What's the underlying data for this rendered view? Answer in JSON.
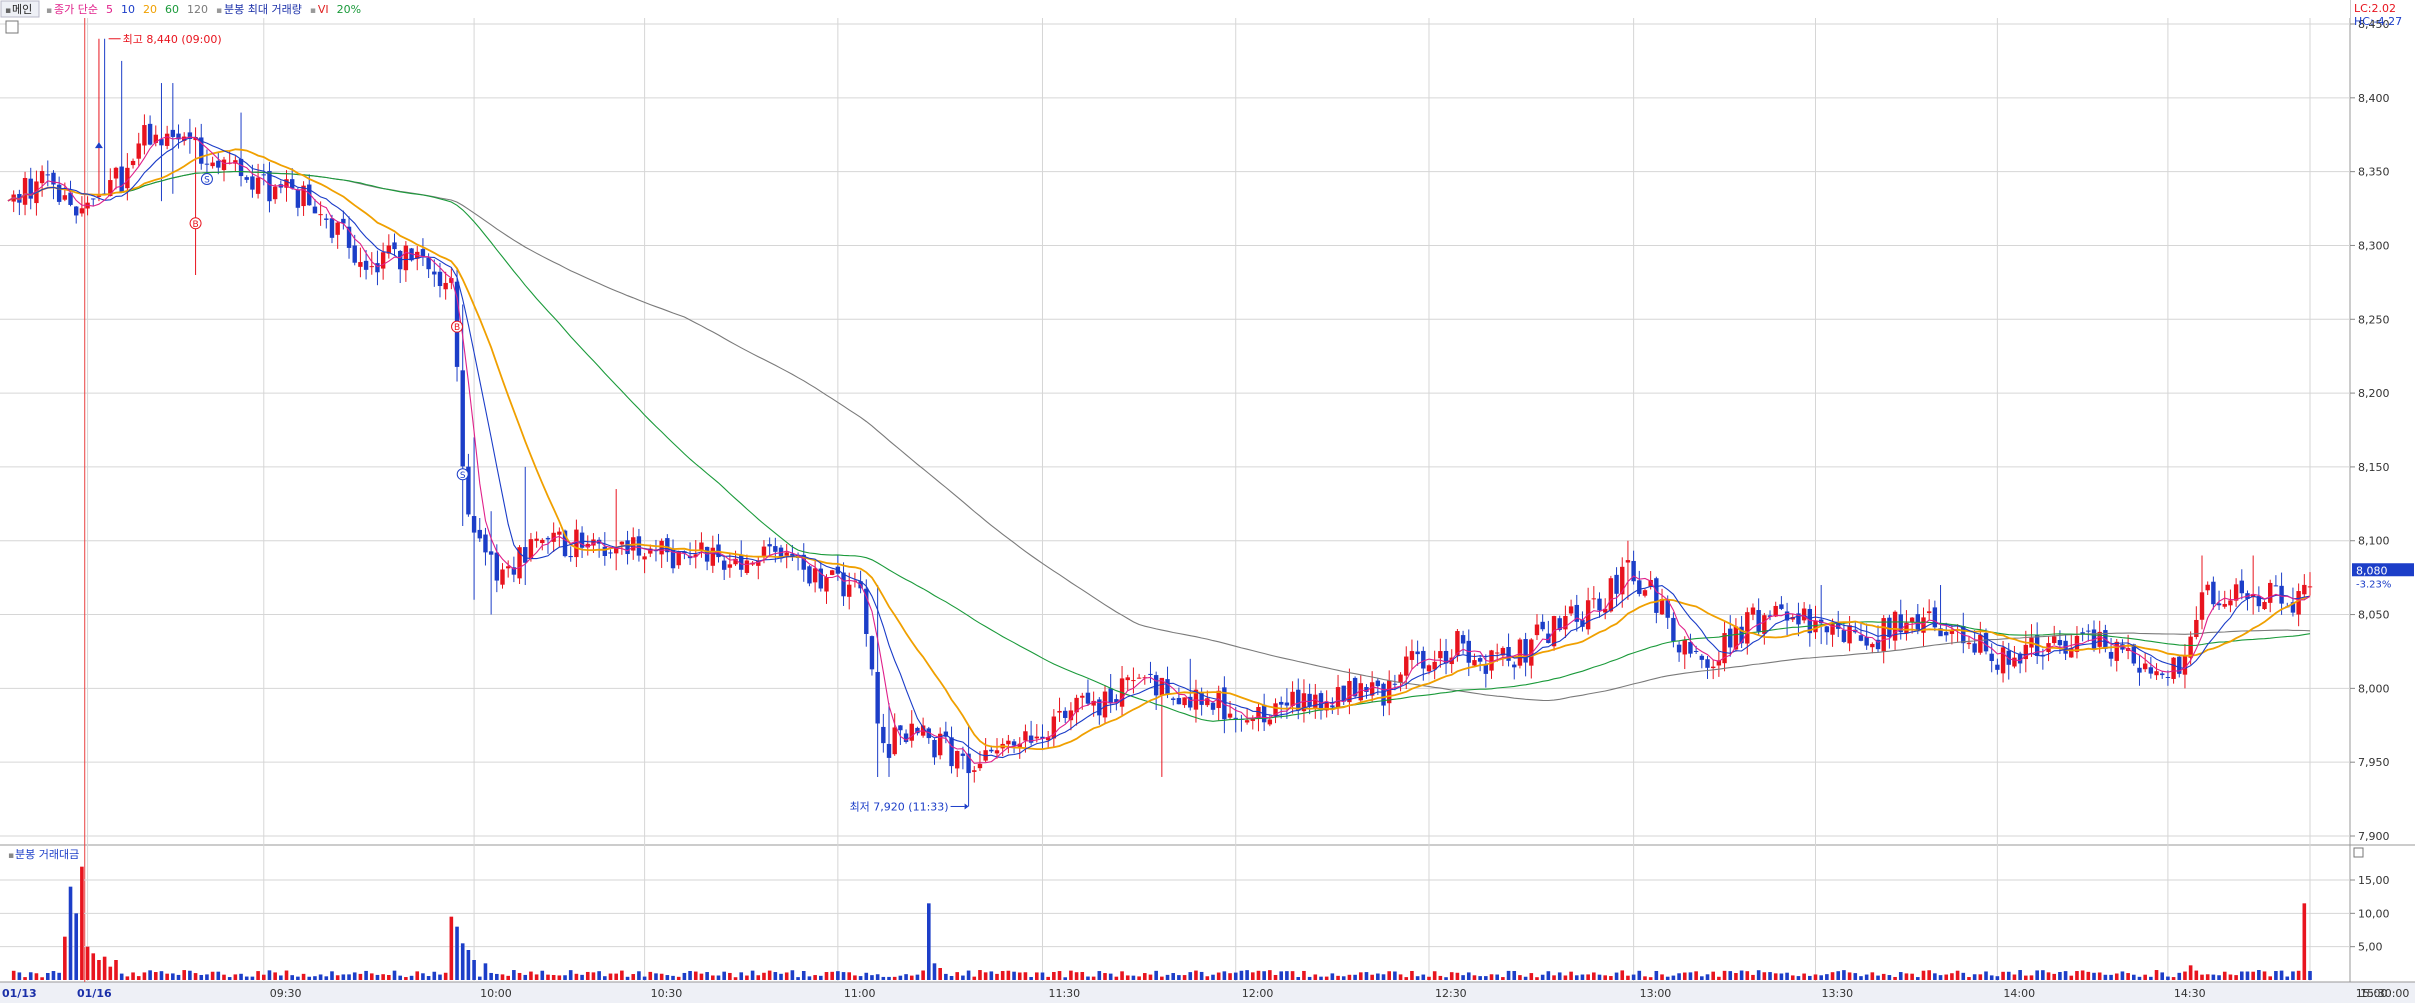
{
  "toolbar": {
    "tab_label": "메인",
    "legend": [
      {
        "text": "종가 단순",
        "color": "#e0208a"
      },
      {
        "text": "5",
        "color": "#e0208a"
      },
      {
        "text": "10",
        "color": "#1a3cc8"
      },
      {
        "text": "20",
        "color": "#f0a000"
      },
      {
        "text": "60",
        "color": "#1a9a3a"
      },
      {
        "text": "120",
        "color": "#7a7a7a"
      },
      {
        "text": "분봉 최대 거래량",
        "color": "#1a2fa8"
      },
      {
        "text": "VI",
        "color": "#e02020"
      },
      {
        "text": "20%",
        "color": "#1a9a3a"
      }
    ],
    "lc_text": "LC:2.02",
    "hc_text": "HC:-4.27"
  },
  "colors": {
    "up": "#e8141e",
    "down": "#1c3ec8",
    "ma5": "#e0208a",
    "ma10": "#1a3cc8",
    "ma20": "#f0a000",
    "ma60": "#1a9a3a",
    "ma120": "#7a7a7a",
    "grid": "#d6d6d6",
    "axis_text": "#333333",
    "current_price_bg": "#1c3ec8"
  },
  "chart_data": [
    {
      "type": "candlestick",
      "title": "",
      "ylim": [
        7900,
        8450
      ],
      "y_ticks": [
        7900,
        7950,
        8000,
        8050,
        8100,
        8150,
        8200,
        8250,
        8300,
        8350,
        8400,
        8450
      ],
      "y_tick_labels": [
        "7,900",
        "7,950",
        "8,000",
        "8,050",
        "8,100",
        "8,150",
        "8,200",
        "8,250",
        "8,300",
        "8,350",
        "8,400",
        "8,450"
      ],
      "x_ticks": [
        "01/13",
        "01/16",
        "09:30",
        "10:00",
        "10:30",
        "11:00",
        "11:30",
        "12:00",
        "12:30",
        "13:00",
        "13:30",
        "14:00",
        "14:30",
        "15:00",
        "15:30:00"
      ],
      "annotations": {
        "high_label": "최고 8,440 (09:00)",
        "low_label": "최저 7,920 (11:33)",
        "current_price": "8,080",
        "current_change": "-3.23%"
      },
      "grid": true,
      "anchors": [
        [
          0,
          8335
        ],
        [
          6,
          8340
        ],
        [
          12,
          8330
        ],
        [
          18,
          8340
        ],
        [
          20,
          8345
        ],
        [
          22,
          8360
        ],
        [
          24,
          8375
        ],
        [
          26,
          8365
        ],
        [
          30,
          8370
        ],
        [
          34,
          8360
        ],
        [
          38,
          8358
        ],
        [
          42,
          8345
        ],
        [
          46,
          8340
        ],
        [
          50,
          8335
        ],
        [
          54,
          8325
        ],
        [
          58,
          8310
        ],
        [
          62,
          8290
        ],
        [
          66,
          8290
        ],
        [
          70,
          8295
        ],
        [
          74,
          8280
        ],
        [
          78,
          8270
        ],
        [
          80,
          8150
        ],
        [
          82,
          8100
        ],
        [
          86,
          8080
        ],
        [
          90,
          8090
        ],
        [
          96,
          8100
        ],
        [
          104,
          8095
        ],
        [
          112,
          8095
        ],
        [
          120,
          8090
        ],
        [
          128,
          8085
        ],
        [
          136,
          8090
        ],
        [
          142,
          8075
        ],
        [
          146,
          8070
        ],
        [
          150,
          8060
        ],
        [
          154,
          7960
        ],
        [
          158,
          7970
        ],
        [
          162,
          7965
        ],
        [
          166,
          7955
        ],
        [
          172,
          7950
        ],
        [
          178,
          7960
        ],
        [
          184,
          7975
        ],
        [
          190,
          7990
        ],
        [
          198,
          8000
        ],
        [
          206,
          7995
        ],
        [
          214,
          7990
        ],
        [
          220,
          7985
        ],
        [
          228,
          7990
        ],
        [
          236,
          7995
        ],
        [
          242,
          7995
        ],
        [
          248,
          8020
        ],
        [
          256,
          8030
        ],
        [
          262,
          8015
        ],
        [
          268,
          8030
        ],
        [
          274,
          8045
        ],
        [
          280,
          8055
        ],
        [
          284,
          8080
        ],
        [
          288,
          8070
        ],
        [
          294,
          8030
        ],
        [
          298,
          8020
        ],
        [
          304,
          8035
        ],
        [
          310,
          8055
        ],
        [
          316,
          8050
        ],
        [
          322,
          8035
        ],
        [
          328,
          8030
        ],
        [
          334,
          8050
        ],
        [
          340,
          8045
        ],
        [
          346,
          8030
        ],
        [
          352,
          8020
        ],
        [
          358,
          8025
        ],
        [
          364,
          8035
        ],
        [
          370,
          8030
        ],
        [
          376,
          8015
        ],
        [
          382,
          8010
        ],
        [
          386,
          8060
        ],
        [
          392,
          8070
        ],
        [
          398,
          8065
        ],
        [
          402,
          8060
        ],
        [
          404,
          8070
        ]
      ],
      "wicks": [
        {
          "i": 16,
          "h": 8440,
          "l": 8330
        },
        {
          "i": 17,
          "h": 8440,
          "l": 8335
        },
        {
          "i": 20,
          "h": 8425,
          "l": 8345
        },
        {
          "i": 27,
          "h": 8410,
          "l": 8330
        },
        {
          "i": 29,
          "h": 8410,
          "l": 8335
        },
        {
          "i": 33,
          "h": 8380,
          "l": 8280
        },
        {
          "i": 41,
          "h": 8390,
          "l": 8340
        },
        {
          "i": 80,
          "h": 8260,
          "l": 8110
        },
        {
          "i": 82,
          "h": 8170,
          "l": 8060
        },
        {
          "i": 85,
          "h": 8120,
          "l": 8050
        },
        {
          "i": 91,
          "h": 8150,
          "l": 8070
        },
        {
          "i": 107,
          "h": 8135,
          "l": 8080
        },
        {
          "i": 153,
          "h": 8070,
          "l": 7940
        },
        {
          "i": 155,
          "h": 7990,
          "l": 7940
        },
        {
          "i": 169,
          "h": 7975,
          "l": 7920
        },
        {
          "i": 203,
          "h": 8000,
          "l": 7940
        },
        {
          "i": 208,
          "h": 8020,
          "l": 7985
        },
        {
          "i": 285,
          "h": 8100,
          "l": 8060
        },
        {
          "i": 319,
          "h": 8070,
          "l": 8030
        },
        {
          "i": 340,
          "h": 8070,
          "l": 8040
        },
        {
          "i": 383,
          "h": 8030,
          "l": 8000
        },
        {
          "i": 386,
          "h": 8090,
          "l": 8040
        },
        {
          "i": 395,
          "h": 8090,
          "l": 8050
        }
      ],
      "markers": [
        {
          "i": 35,
          "price": 8345,
          "letter": "S"
        },
        {
          "i": 33,
          "price": 8315,
          "letter": "B"
        },
        {
          "i": 79,
          "price": 8245,
          "letter": "B"
        },
        {
          "i": 80,
          "price": 8145,
          "letter": "S"
        }
      ]
    },
    {
      "type": "bar",
      "title": "분봉 거래대금",
      "ylim": [
        0,
        18
      ],
      "y_ticks": [
        5,
        10,
        15
      ],
      "y_tick_labels": [
        "5,00",
        "10,00",
        "15,00"
      ],
      "spikes": [
        {
          "i": 10,
          "v": 6.5
        },
        {
          "i": 11,
          "v": 14
        },
        {
          "i": 12,
          "v": 10
        },
        {
          "i": 13,
          "v": 17
        },
        {
          "i": 14,
          "v": 5
        },
        {
          "i": 15,
          "v": 4
        },
        {
          "i": 16,
          "v": 3
        },
        {
          "i": 17,
          "v": 3.5
        },
        {
          "i": 18,
          "v": 2
        },
        {
          "i": 19,
          "v": 3
        },
        {
          "i": 78,
          "v": 9.5
        },
        {
          "i": 79,
          "v": 8
        },
        {
          "i": 80,
          "v": 5.5
        },
        {
          "i": 81,
          "v": 4.5
        },
        {
          "i": 82,
          "v": 3
        },
        {
          "i": 84,
          "v": 2.5
        },
        {
          "i": 162,
          "v": 11.5
        },
        {
          "i": 163,
          "v": 2.5
        },
        {
          "i": 164,
          "v": 1.8
        },
        {
          "i": 384,
          "v": 2.2
        },
        {
          "i": 404,
          "v": 11.5
        }
      ]
    }
  ]
}
